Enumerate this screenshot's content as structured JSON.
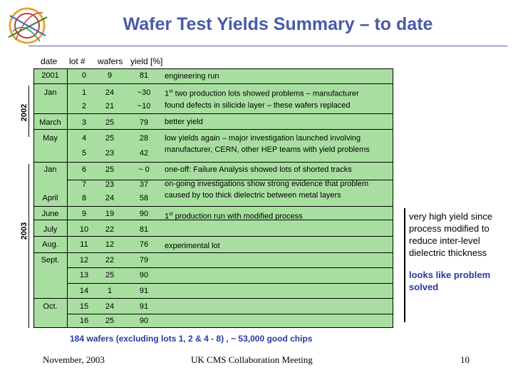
{
  "title": "Wafer Test Yields Summary – to date",
  "headers": {
    "date": "date",
    "lot": "lot #",
    "wafers": "wafers",
    "yield": "yield [%]"
  },
  "years": {
    "y2002": "2002",
    "y2003": "2003"
  },
  "dates": [
    "2001",
    "Jan",
    "March",
    "May",
    "Jan",
    "April",
    "June",
    "July",
    "Aug.",
    "Sept.",
    "Oct."
  ],
  "rows": [
    {
      "lot": "0",
      "wafers": "9",
      "yield": "81"
    },
    {
      "lot": "1",
      "wafers": "24",
      "yield": "~30"
    },
    {
      "lot": "2",
      "wafers": "21",
      "yield": "~10"
    },
    {
      "lot": "3",
      "wafers": "25",
      "yield": "79"
    },
    {
      "lot": "4",
      "wafers": "25",
      "yield": "28"
    },
    {
      "lot": "5",
      "wafers": "23",
      "yield": "42"
    },
    {
      "lot": "6",
      "wafers": "25",
      "yield": "~ 0"
    },
    {
      "lot": "7",
      "wafers": "23",
      "yield": "37"
    },
    {
      "lot": "8",
      "wafers": "24",
      "yield": "58"
    },
    {
      "lot": "9",
      "wafers": "19",
      "yield": "90"
    },
    {
      "lot": "10",
      "wafers": "22",
      "yield": "81"
    },
    {
      "lot": "11",
      "wafers": "12",
      "yield": "76"
    },
    {
      "lot": "12",
      "wafers": "22",
      "yield": "79"
    },
    {
      "lot": "13",
      "wafers": "25",
      "yield": "90"
    },
    {
      "lot": "14",
      "wafers": "1",
      "yield": "91"
    },
    {
      "lot": "15",
      "wafers": "24",
      "yield": "91"
    },
    {
      "lot": "16",
      "wafers": "25",
      "yield": "90"
    }
  ],
  "comments": {
    "c0": "engineering run",
    "c1a": "two production lots showed problems – manufacturer",
    "c1b": "found defects in silicide layer – these wafers replaced",
    "c3": "better yield",
    "c4a": " low yields again – major investigation launched involving",
    "c4b": "manufacturer, CERN, other HEP teams with yield problems",
    "c6": "one-off:  Failure Analysis showed lots of shorted tracks",
    "c7a": "on-going investigations show strong evidence that problem",
    "c7b": "caused by too thick dielectric between metal layers",
    "c9": " production run with modified process",
    "c11": "experimental lot",
    "first_num": "1",
    "first_sup": "st"
  },
  "side_note_1": "very high yield since process modified to reduce inter-level dielectric thickness",
  "side_note_2": "looks like problem solved",
  "summary": "184 wafers (excluding lots 1, 2 & 4 - 8) , ~ 53,000 good chips",
  "footer": {
    "date": "November, 2003",
    "meeting": "UK CMS Collaboration Meeting",
    "page": "10"
  },
  "colors": {
    "title": "#4a5aa8",
    "table_bg": "#a8dfa0",
    "note_blue": "#2a38a0"
  }
}
